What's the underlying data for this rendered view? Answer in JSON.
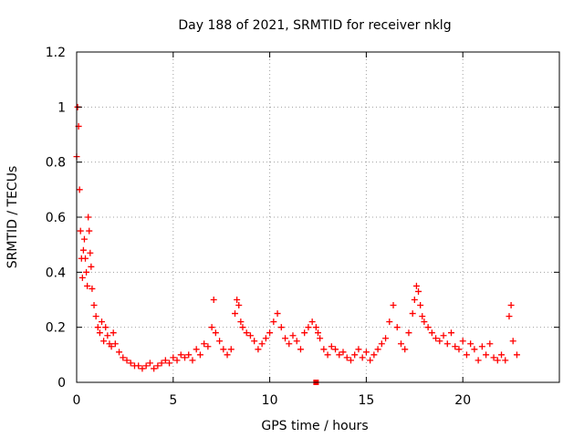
{
  "chart_data": {
    "type": "scatter",
    "title": "Day 188 of 2021, SRMTID for receiver nklg",
    "xlabel": "GPS time / hours",
    "ylabel": "SRMTID / TECUs",
    "xlim": [
      0,
      25
    ],
    "ylim": [
      0,
      1.2
    ],
    "grid": true,
    "xticks": [
      0,
      5,
      10,
      15,
      20
    ],
    "xtick_labels": [
      "0",
      "5",
      "10",
      "15",
      "20"
    ],
    "yticks": [
      0,
      0.2,
      0.4,
      0.6,
      0.8,
      1.0,
      1.2
    ],
    "ytick_labels": [
      "0",
      "0.2",
      "0.4",
      "0.6",
      "0.8",
      "1",
      "1.2"
    ],
    "series": [
      {
        "name": "SRMTID",
        "color": "#ff0000",
        "marker": "plus",
        "x": [
          0.0,
          0.05,
          0.1,
          0.15,
          0.2,
          0.25,
          0.3,
          0.35,
          0.4,
          0.45,
          0.5,
          0.55,
          0.6,
          0.65,
          0.7,
          0.75,
          0.8,
          0.9,
          1.0,
          1.1,
          1.2,
          1.3,
          1.4,
          1.5,
          1.6,
          1.7,
          1.8,
          1.9,
          2.0,
          2.2,
          2.4,
          2.6,
          2.8,
          3.0,
          3.2,
          3.4,
          3.6,
          3.8,
          4.0,
          4.2,
          4.4,
          4.6,
          4.8,
          5.0,
          5.2,
          5.4,
          5.6,
          5.8,
          6.0,
          6.2,
          6.4,
          6.6,
          6.8,
          7.0,
          7.1,
          7.2,
          7.4,
          7.6,
          7.8,
          8.0,
          8.2,
          8.3,
          8.4,
          8.5,
          8.6,
          8.8,
          9.0,
          9.2,
          9.4,
          9.6,
          9.8,
          10.0,
          10.2,
          10.4,
          10.6,
          10.8,
          11.0,
          11.2,
          11.4,
          11.6,
          11.8,
          12.0,
          12.2,
          12.4,
          12.5,
          12.6,
          12.8,
          13.0,
          13.2,
          13.4,
          13.6,
          13.8,
          14.0,
          14.2,
          14.4,
          14.6,
          14.8,
          15.0,
          15.2,
          15.4,
          15.6,
          15.8,
          16.0,
          16.2,
          16.4,
          16.6,
          16.8,
          17.0,
          17.2,
          17.4,
          17.5,
          17.6,
          17.7,
          17.8,
          17.9,
          18.0,
          18.2,
          18.4,
          18.6,
          18.8,
          19.0,
          19.2,
          19.4,
          19.6,
          19.8,
          20.0,
          20.2,
          20.4,
          20.6,
          20.8,
          21.0,
          21.2,
          21.4,
          21.6,
          21.8,
          22.0,
          22.2,
          22.4,
          22.5,
          22.6,
          22.8
        ],
        "y": [
          0.82,
          1.0,
          0.93,
          0.7,
          0.55,
          0.45,
          0.38,
          0.48,
          0.52,
          0.45,
          0.4,
          0.35,
          0.6,
          0.55,
          0.47,
          0.42,
          0.34,
          0.28,
          0.24,
          0.2,
          0.18,
          0.22,
          0.15,
          0.2,
          0.17,
          0.14,
          0.13,
          0.18,
          0.14,
          0.11,
          0.09,
          0.08,
          0.07,
          0.06,
          0.06,
          0.05,
          0.06,
          0.07,
          0.05,
          0.06,
          0.07,
          0.08,
          0.07,
          0.09,
          0.08,
          0.1,
          0.09,
          0.1,
          0.08,
          0.12,
          0.1,
          0.14,
          0.13,
          0.2,
          0.3,
          0.18,
          0.15,
          0.12,
          0.1,
          0.12,
          0.25,
          0.3,
          0.28,
          0.22,
          0.2,
          0.18,
          0.17,
          0.15,
          0.12,
          0.14,
          0.16,
          0.18,
          0.22,
          0.25,
          0.2,
          0.16,
          0.14,
          0.17,
          0.15,
          0.12,
          0.18,
          0.2,
          0.22,
          0.2,
          0.18,
          0.16,
          0.12,
          0.1,
          0.13,
          0.12,
          0.1,
          0.11,
          0.09,
          0.08,
          0.1,
          0.12,
          0.09,
          0.11,
          0.08,
          0.1,
          0.12,
          0.14,
          0.16,
          0.22,
          0.28,
          0.2,
          0.14,
          0.12,
          0.18,
          0.25,
          0.3,
          0.35,
          0.33,
          0.28,
          0.24,
          0.22,
          0.2,
          0.18,
          0.16,
          0.15,
          0.17,
          0.14,
          0.18,
          0.13,
          0.12,
          0.15,
          0.1,
          0.14,
          0.12,
          0.08,
          0.13,
          0.1,
          0.14,
          0.09,
          0.08,
          0.1,
          0.08,
          0.24,
          0.28,
          0.15,
          0.1
        ]
      }
    ],
    "outlier": {
      "x": 12.4,
      "y": 0.0
    }
  }
}
